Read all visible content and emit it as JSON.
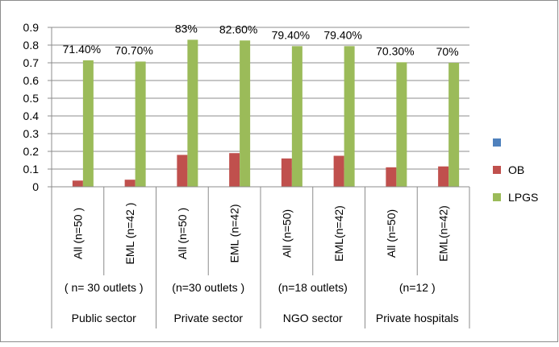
{
  "chart_data": {
    "type": "bar",
    "title": "",
    "xlabel": "",
    "ylabel": "",
    "ylim": [
      0,
      0.9
    ],
    "yticks": [
      "0",
      "0.1",
      "0.2",
      "0.3",
      "0.4",
      "0.5",
      "0.6",
      "0.7",
      "0.8",
      "0.9"
    ],
    "grid": true,
    "legend_position": "right",
    "categories": [
      "All (n=50 )",
      "EML (n=42 )",
      "All (n=50 )",
      "EML (n=42)",
      "All (n=50)",
      "EML(n=42)",
      "All (n=50)",
      "EML(n=42)"
    ],
    "group_notes": [
      "( n= 30 outlets )",
      "(n=30 outlets )",
      "(n=18 outlets)",
      "(n=12 )"
    ],
    "groups": [
      "Public sector",
      "Private sector",
      "NGO sector",
      "Private hospitals"
    ],
    "series": [
      {
        "name": "",
        "color": "#4f81bd",
        "values": [
          0,
          0,
          0,
          0,
          0,
          0,
          0,
          0
        ]
      },
      {
        "name": "OB",
        "color": "#c0504d",
        "values": [
          0.035,
          0.04,
          0.18,
          0.19,
          0.16,
          0.175,
          0.11,
          0.115
        ]
      },
      {
        "name": "LPGS",
        "color": "#9bbb59",
        "values": [
          0.714,
          0.707,
          0.83,
          0.826,
          0.794,
          0.794,
          0.703,
          0.7
        ]
      }
    ],
    "data_labels": [
      "71.40%",
      "70.70%",
      "83%",
      "82.60%",
      "79.40%",
      "79.40%",
      "70.30%",
      "70%"
    ]
  }
}
